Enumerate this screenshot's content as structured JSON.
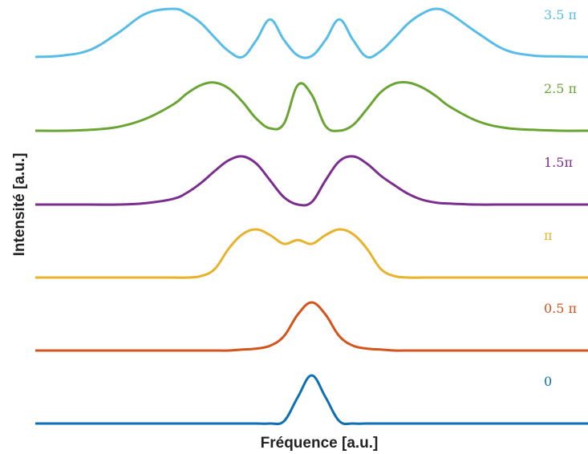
{
  "chart_data": {
    "type": "line",
    "title": "",
    "xlabel": "Fréquence [a.u.]",
    "ylabel": "Intensité [a.u.]",
    "xlim": [
      -1,
      1
    ],
    "grid": false,
    "legend": "right-of-each-curve",
    "x": [
      -1.0,
      -0.9,
      -0.8,
      -0.7,
      -0.6,
      -0.5,
      -0.45,
      -0.4,
      -0.35,
      -0.3,
      -0.25,
      -0.2,
      -0.15,
      -0.1,
      -0.05,
      0.0,
      0.05,
      0.1,
      0.15,
      0.2,
      0.25,
      0.3,
      0.35,
      0.4,
      0.45,
      0.5,
      0.6,
      0.7,
      0.8,
      0.9,
      1.0
    ],
    "series": [
      {
        "name": "0",
        "color": "#0f6fb4",
        "values": [
          0,
          0,
          0,
          0,
          0,
          0,
          0,
          0,
          0,
          0,
          0,
          0,
          0,
          0.05,
          0.55,
          1.0,
          0.55,
          0.05,
          0,
          0,
          0,
          0,
          0,
          0,
          0,
          0,
          0,
          0,
          0,
          0,
          0
        ]
      },
      {
        "name": "0.5 π",
        "color": "#d4541c",
        "values": [
          0,
          0,
          0,
          0,
          0,
          0,
          0,
          0,
          0,
          0,
          0.02,
          0.04,
          0.1,
          0.3,
          0.75,
          1.0,
          0.75,
          0.3,
          0.1,
          0.04,
          0.02,
          0,
          0,
          0,
          0,
          0,
          0,
          0,
          0,
          0,
          0
        ]
      },
      {
        "name": "π",
        "color": "#e8b22b",
        "values": [
          0,
          0,
          0,
          0,
          0,
          0,
          0,
          0.03,
          0.18,
          0.6,
          0.9,
          1.0,
          0.88,
          0.7,
          0.78,
          0.7,
          0.88,
          1.0,
          0.9,
          0.6,
          0.18,
          0.03,
          0,
          0,
          0,
          0,
          0,
          0,
          0,
          0,
          0
        ]
      },
      {
        "name": "1.5π",
        "color": "#7b2e8e",
        "values": [
          0,
          0,
          0,
          0,
          0.03,
          0.12,
          0.25,
          0.45,
          0.7,
          0.92,
          1.0,
          0.85,
          0.5,
          0.15,
          0.0,
          0.05,
          0.5,
          0.9,
          1.0,
          0.85,
          0.6,
          0.4,
          0.22,
          0.1,
          0.04,
          0.02,
          0,
          0,
          0,
          0,
          0
        ]
      },
      {
        "name": "2.5 π",
        "color": "#6aa533",
        "values": [
          0,
          0,
          0.02,
          0.08,
          0.25,
          0.55,
          0.78,
          0.95,
          1.0,
          0.88,
          0.6,
          0.25,
          0.05,
          0.15,
          0.95,
          0.75,
          0.1,
          0.0,
          0.12,
          0.45,
          0.8,
          0.98,
          1.0,
          0.9,
          0.72,
          0.5,
          0.2,
          0.06,
          0.02,
          0,
          0
        ]
      },
      {
        "name": "3.5 π",
        "color": "#56bde8",
        "values": [
          0,
          0.03,
          0.15,
          0.5,
          0.9,
          1.0,
          0.9,
          0.7,
          0.4,
          0.12,
          0.0,
          0.35,
          0.78,
          0.35,
          0.03,
          0.02,
          0.35,
          0.78,
          0.35,
          0.0,
          0.12,
          0.4,
          0.7,
          0.9,
          1.0,
          0.9,
          0.5,
          0.15,
          0.03,
          0.01,
          0
        ]
      }
    ]
  }
}
